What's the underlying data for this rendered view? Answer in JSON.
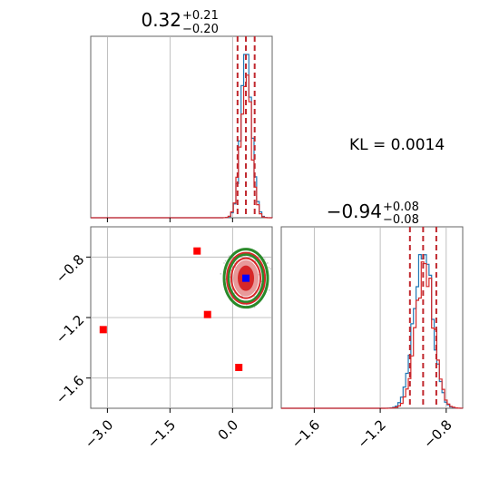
{
  "chart_data": [
    {
      "panel": "top-left",
      "type": "histogram",
      "title_value": "0.32",
      "title_plus": "+0.21",
      "title_minus": "−0.20",
      "xlim": [
        -3.4,
        0.95
      ],
      "x_ticks": [
        -3.0,
        -1.5,
        0.0
      ],
      "quantile_lines": [
        0.12,
        0.32,
        0.53
      ],
      "series": [
        {
          "color": "#1f77b4",
          "peak": 0.33,
          "spread": 0.13,
          "max_height": 1.0
        },
        {
          "color": "#d62728",
          "peak": 0.32,
          "spread": 0.13,
          "max_height": 0.84
        }
      ],
      "grid": true
    },
    {
      "panel": "bottom-left",
      "type": "scatter",
      "xlim": [
        -3.4,
        0.95
      ],
      "ylim": [
        -1.8,
        -0.6
      ],
      "x_ticks": [
        -3.0,
        -1.5,
        0.0
      ],
      "x_tick_labels": [
        "−3.0",
        "−1.5",
        "0.0"
      ],
      "y_ticks": [
        -0.8,
        -1.2,
        -1.6
      ],
      "y_tick_labels": [
        "−0.8",
        "−1.2",
        "−1.6"
      ],
      "red_squares": [
        {
          "x": -0.85,
          "y": -0.76
        },
        {
          "x": -0.6,
          "y": -1.18
        },
        {
          "x": -3.1,
          "y": -1.28
        },
        {
          "x": 0.15,
          "y": -1.53
        }
      ],
      "blue_square": {
        "x": 0.32,
        "y": -0.94
      },
      "contour_center": {
        "x": 0.32,
        "y": -0.94
      },
      "grid": true
    },
    {
      "panel": "bottom-right",
      "type": "histogram",
      "title_value": "−0.94",
      "title_plus": "+0.08",
      "title_minus": "−0.08",
      "xlim": [
        -1.8,
        -0.7
      ],
      "x_ticks": [
        -1.6,
        -1.2,
        -0.8
      ],
      "x_tick_labels": [
        "−1.6",
        "−1.2",
        "−0.8"
      ],
      "quantile_lines": [
        -1.02,
        -0.94,
        -0.86
      ],
      "series": [
        {
          "color": "#1f77b4",
          "peak": -0.94,
          "spread": 0.055,
          "max_height": 1.0
        },
        {
          "color": "#d62728",
          "peak": -0.93,
          "spread": 0.055,
          "max_height": 0.86
        }
      ],
      "grid": true
    }
  ],
  "annotation": {
    "kl_text": "KL = 0.0014"
  }
}
